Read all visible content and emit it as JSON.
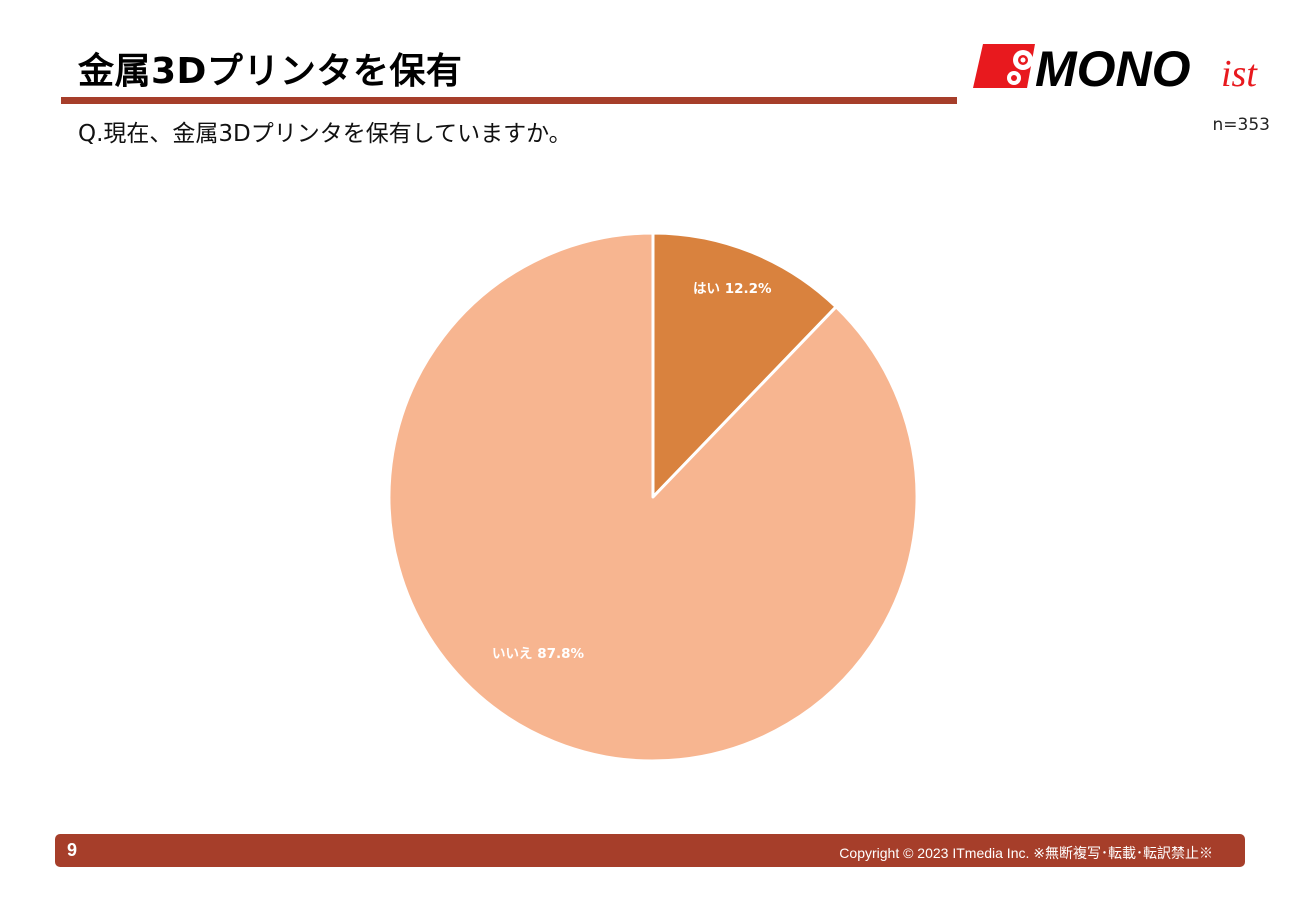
{
  "header": {
    "title": "金属3Dプリンタを保有",
    "question": "Q.現在、金属3Dプリンタを保有していますか。",
    "sample_size": "n=353",
    "logo": {
      "text_main": "MONO",
      "text_suffix": "ist",
      "icon": "gear-icon"
    }
  },
  "colors": {
    "accent_rule": "#A63E2A",
    "footer_bg": "#A63E2A",
    "logo_red": "#E8191E",
    "slice_yes": "#D9823E",
    "slice_no": "#F7B590"
  },
  "chart_data": {
    "type": "pie",
    "title": "",
    "categories": [
      "はい",
      "いいえ"
    ],
    "values": [
      12.2,
      87.8
    ],
    "unit": "%",
    "labels": [
      "はい 12.2%",
      "いいえ 87.8%"
    ],
    "start_angle": "12 o'clock, clockwise",
    "legend": "none (labels inside slices)"
  },
  "footer": {
    "page_number": "9",
    "copyright": "Copyright © 2023 ITmedia Inc.  ※無断複写･転載･転訳禁止※"
  }
}
